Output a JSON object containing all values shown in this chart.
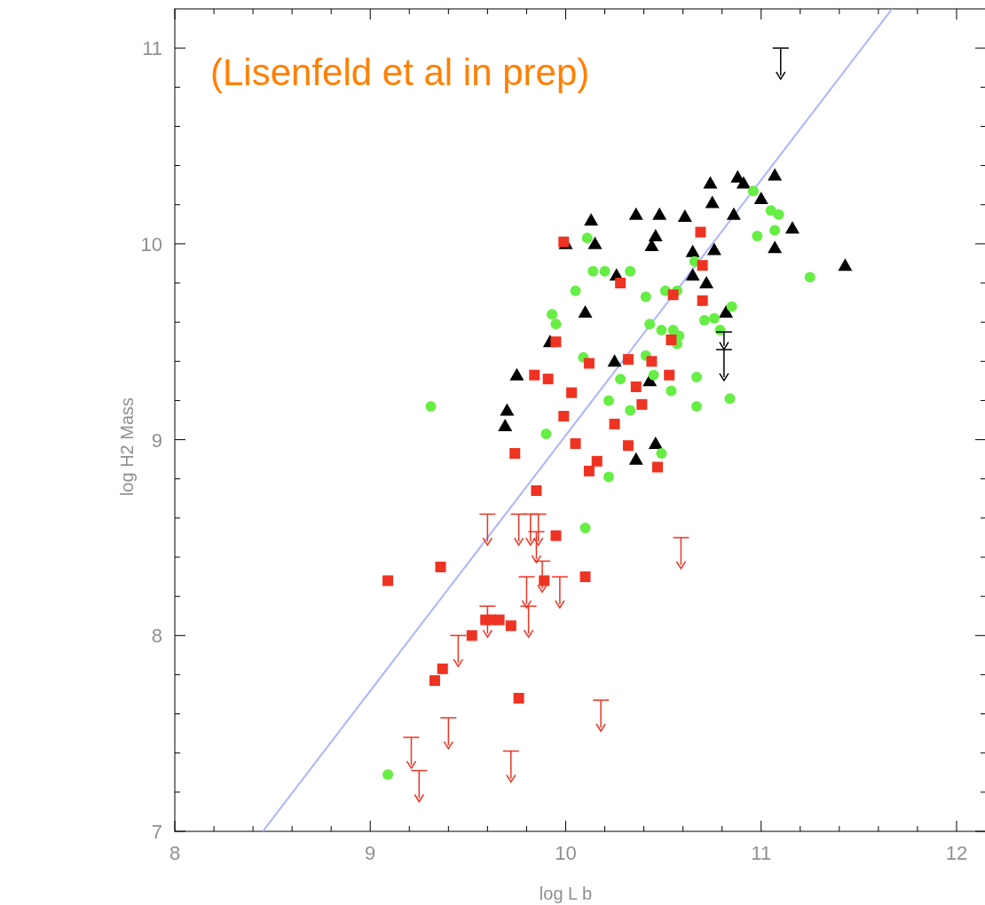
{
  "chart_data": {
    "type": "scatter",
    "xlabel": "log L b",
    "ylabel": "log H2 Mass",
    "annotations": [
      "(Lisenfeld et al in prep)"
    ],
    "xlim": [
      8,
      12.15
    ],
    "ylim": [
      7,
      11.2
    ],
    "xticks": [
      8,
      {
        "value": 8.2,
        "label": null
      },
      {
        "value": 8.4,
        "label": null
      },
      {
        "value": 8.6,
        "label": null
      },
      {
        "value": 8.8,
        "label": null
      },
      9,
      {
        "value": 9.2,
        "label": null
      },
      {
        "value": 9.4,
        "label": null
      },
      {
        "value": 9.6,
        "label": null
      },
      {
        "value": 9.8,
        "label": null
      },
      10,
      {
        "value": 10.2,
        "label": null
      },
      {
        "value": 10.4,
        "label": null
      },
      {
        "value": 10.6,
        "label": null
      },
      {
        "value": 10.8,
        "label": null
      },
      11,
      {
        "value": 11.2,
        "label": null
      },
      {
        "value": 11.4,
        "label": null
      },
      {
        "value": 11.6,
        "label": null
      },
      {
        "value": 11.8,
        "label": null
      },
      12
    ],
    "yticks": [
      7,
      {
        "value": 7.2,
        "label": null
      },
      {
        "value": 7.4,
        "label": null
      },
      {
        "value": 7.6,
        "label": null
      },
      {
        "value": 7.8,
        "label": null
      },
      8,
      {
        "value": 8.2,
        "label": null
      },
      {
        "value": 8.4,
        "label": null
      },
      {
        "value": 8.6,
        "label": null
      },
      {
        "value": 8.8,
        "label": null
      },
      9,
      {
        "value": 9.2,
        "label": null
      },
      {
        "value": 9.4,
        "label": null
      },
      {
        "value": 9.6,
        "label": null
      },
      {
        "value": 9.8,
        "label": null
      },
      10,
      {
        "value": 10.2,
        "label": null
      },
      {
        "value": 10.4,
        "label": null
      },
      {
        "value": 10.6,
        "label": null
      },
      {
        "value": 10.8,
        "label": null
      },
      11
    ],
    "series": [
      {
        "type": "line",
        "color": "#aab4ff",
        "marker": "none",
        "x": [
          8.45,
          11.67
        ],
        "values": [
          7,
          11.2
        ]
      },
      {
        "color": "#000000",
        "marker": "triangle",
        "x": [
          10.13,
          10.0,
          10.15,
          10.26,
          10.36,
          10.48,
          10.46,
          10.44,
          10.1,
          9.92,
          9.75,
          9.7,
          9.69,
          10.25,
          10.43,
          10.46,
          10.36,
          10.74,
          10.61,
          10.75,
          10.65,
          10.76,
          10.65,
          10.72,
          10.82,
          10.88,
          10.91,
          10.86,
          11.0,
          11.07,
          11.07,
          11.16,
          11.43
        ],
        "values": [
          10.12,
          10.0,
          10.0,
          9.84,
          10.15,
          10.15,
          10.04,
          9.99,
          9.65,
          9.5,
          9.33,
          9.15,
          9.07,
          9.4,
          9.3,
          8.98,
          8.9,
          10.31,
          10.14,
          10.21,
          9.96,
          9.97,
          9.84,
          9.8,
          9.65,
          10.34,
          10.31,
          10.15,
          10.23,
          10.35,
          9.98,
          10.08,
          9.89
        ]
      },
      {
        "color": "#66ee44",
        "marker": "circle",
        "x": [
          9.31,
          10.11,
          10.14,
          10.2,
          10.33,
          10.05,
          9.93,
          9.95,
          10.09,
          10.41,
          10.51,
          10.57,
          10.55,
          10.49,
          10.43,
          10.58,
          10.57,
          10.41,
          10.45,
          10.28,
          10.22,
          10.33,
          10.54,
          10.67,
          10.67,
          10.66,
          10.71,
          10.76,
          10.79,
          10.85,
          10.84,
          10.96,
          10.98,
          11.05,
          11.09,
          11.07,
          11.25,
          9.9,
          10.22,
          10.1,
          10.49,
          9.09
        ],
        "values": [
          9.17,
          10.03,
          9.86,
          9.86,
          9.86,
          9.76,
          9.64,
          9.59,
          9.42,
          9.73,
          9.76,
          9.76,
          9.56,
          9.56,
          9.59,
          9.53,
          9.49,
          9.43,
          9.33,
          9.31,
          9.2,
          9.15,
          9.25,
          9.32,
          9.17,
          9.91,
          9.61,
          9.62,
          9.56,
          9.68,
          9.21,
          10.27,
          10.04,
          10.17,
          10.15,
          10.07,
          9.83,
          9.03,
          8.81,
          8.55,
          8.93,
          7.29
        ]
      },
      {
        "color": "#ee3322",
        "marker": "square",
        "x": [
          9.99,
          10.69,
          10.7,
          10.7,
          10.28,
          9.95,
          10.54,
          10.55,
          10.12,
          10.32,
          10.44,
          10.53,
          9.84,
          9.91,
          10.03,
          10.36,
          10.39,
          9.99,
          10.25,
          10.05,
          10.32,
          10.47,
          10.16,
          10.12,
          9.74,
          9.85,
          9.95,
          9.89,
          10.1,
          9.36,
          9.09,
          9.59,
          9.62,
          9.66,
          9.72,
          9.52,
          9.37,
          9.33,
          9.76
        ],
        "values": [
          10.01,
          10.06,
          9.89,
          9.71,
          9.8,
          9.5,
          9.51,
          9.74,
          9.39,
          9.41,
          9.4,
          9.33,
          9.33,
          9.31,
          9.24,
          9.27,
          9.18,
          9.12,
          9.08,
          8.98,
          8.97,
          8.86,
          8.89,
          8.84,
          8.93,
          8.74,
          8.51,
          8.28,
          8.3,
          8.35,
          8.28,
          8.08,
          8.08,
          8.08,
          8.05,
          8.0,
          7.83,
          7.77,
          7.68
        ]
      },
      {
        "color": "#ee3322",
        "x": [
          9.6,
          9.76,
          9.82,
          9.86,
          9.85,
          9.88,
          9.8,
          9.97,
          9.6,
          9.81,
          9.45,
          10.59,
          9.4,
          9.21,
          9.25,
          9.72,
          10.18
        ],
        "values": [
          8.48,
          8.48,
          8.48,
          8.48,
          8.39,
          8.24,
          8.16,
          8.16,
          8.01,
          8.01,
          7.86,
          8.36,
          7.44,
          7.34,
          7.17,
          7.27,
          7.53
        ],
        "errors": [
          [
            8.48,
            8.62
          ],
          [
            8.48,
            8.62
          ],
          [
            8.48,
            8.62
          ],
          [
            8.48,
            8.62
          ],
          [
            8.39,
            8.53
          ],
          [
            8.24,
            8.38
          ],
          [
            8.16,
            8.3
          ],
          [
            8.16,
            8.3
          ],
          [
            8.01,
            8.15
          ],
          [
            8.01,
            8.15
          ],
          [
            7.86,
            8.0
          ],
          [
            8.36,
            8.5
          ],
          [
            7.44,
            7.58
          ],
          [
            7.34,
            7.48
          ],
          [
            7.17,
            7.31
          ],
          [
            7.27,
            7.41
          ],
          [
            7.53,
            7.67
          ]
        ]
      },
      {
        "color": "#000000",
        "x": [
          11.1,
          10.81,
          10.81
        ],
        "values": [
          10.86,
          9.48,
          9.32
        ],
        "errors": [
          [
            10.86,
            11.0
          ],
          [
            9.48,
            9.55
          ],
          [
            9.32,
            9.46
          ]
        ]
      }
    ]
  }
}
